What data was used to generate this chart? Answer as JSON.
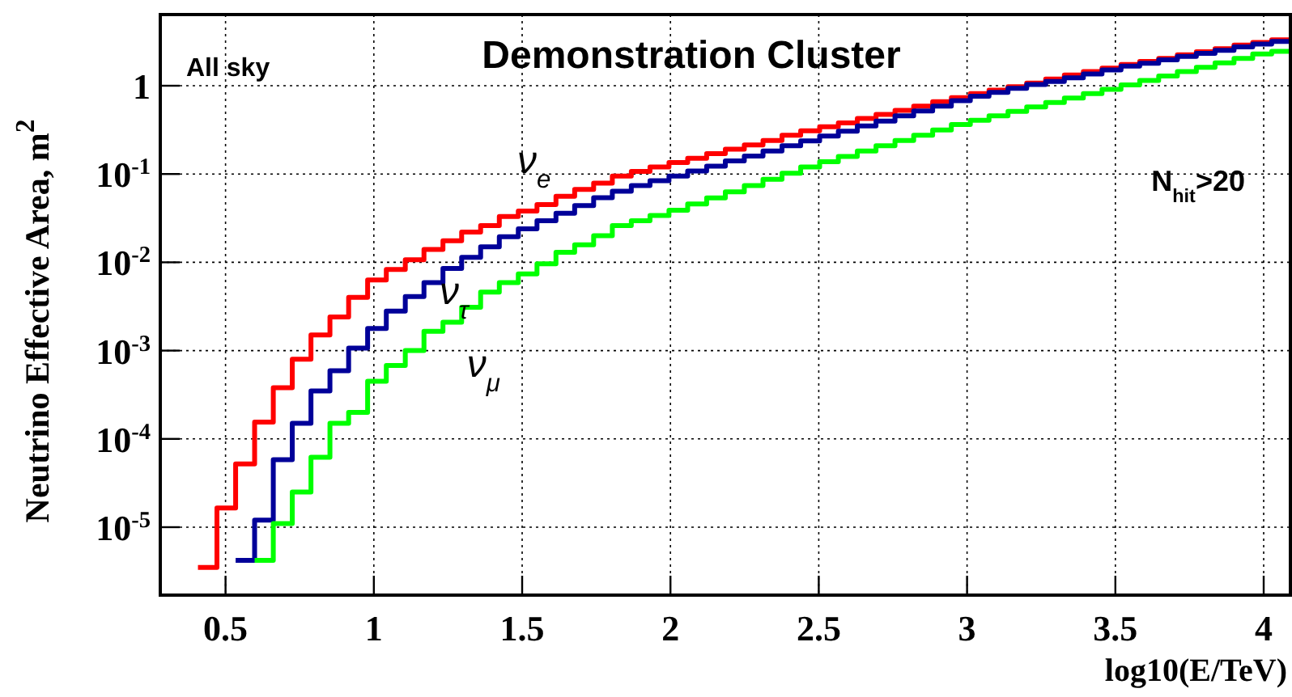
{
  "chart_data": {
    "type": "step",
    "title": "Demonstration Cluster",
    "xlabel": "log10(E/TeV)",
    "ylabel": "Neutrino Effective Area, m$^{2}$",
    "annotations": [
      "All sky",
      "N$_{hit}$>20"
    ],
    "x": [
      0.407,
      0.471,
      0.534,
      0.598,
      0.661,
      0.725,
      0.788,
      0.852,
      0.915,
      0.979,
      1.042,
      1.106,
      1.169,
      1.233,
      1.296,
      1.36,
      1.423,
      1.487,
      1.55,
      1.614,
      1.677,
      1.741,
      1.804,
      1.868,
      1.931,
      1.995,
      2.058,
      2.122,
      2.185,
      2.249,
      2.312,
      2.376,
      2.439,
      2.503,
      2.566,
      2.63,
      2.693,
      2.757,
      2.82,
      2.884,
      2.947,
      3.011,
      3.074,
      3.138,
      3.201,
      3.265,
      3.328,
      3.392,
      3.455,
      3.519,
      3.582,
      3.646,
      3.709,
      3.773,
      3.836,
      3.9,
      3.963,
      4.027,
      4.09
    ],
    "series": [
      {
        "name": "ν$_{e}$",
        "color": "#ff0000",
        "values": [
          3.5e-06,
          1.65e-05,
          5.2e-05,
          0.000155,
          0.00038,
          0.0008,
          0.0015,
          0.0024,
          0.004,
          0.0063,
          0.0083,
          0.0107,
          0.014,
          0.0175,
          0.022,
          0.026,
          0.033,
          0.038,
          0.045,
          0.056,
          0.067,
          0.079,
          0.095,
          0.107,
          0.12,
          0.135,
          0.151,
          0.17,
          0.191,
          0.214,
          0.24,
          0.275,
          0.309,
          0.343,
          0.38,
          0.427,
          0.473,
          0.525,
          0.589,
          0.661,
          0.733,
          0.813,
          0.891,
          0.977,
          1.07,
          1.19,
          1.32,
          1.45,
          1.58,
          1.74,
          1.88,
          2.04,
          2.24,
          2.43,
          2.63,
          2.88,
          3.09,
          3.31,
          3.31
        ]
      },
      {
        "name": "ν$_{τ}$",
        "color": "#000099",
        "values": [
          null,
          null,
          4.2e-06,
          1.2e-05,
          5.8e-05,
          0.00015,
          0.00035,
          0.00059,
          0.00107,
          0.00178,
          0.0028,
          0.0041,
          0.0059,
          0.0085,
          0.0114,
          0.015,
          0.0195,
          0.024,
          0.0295,
          0.036,
          0.044,
          0.054,
          0.064,
          0.074,
          0.084,
          0.095,
          0.108,
          0.123,
          0.141,
          0.16,
          0.182,
          0.209,
          0.237,
          0.269,
          0.305,
          0.351,
          0.398,
          0.457,
          0.519,
          0.589,
          0.676,
          0.759,
          0.841,
          0.933,
          1.03,
          1.12,
          1.23,
          1.36,
          1.51,
          1.67,
          1.8,
          1.96,
          2.15,
          2.33,
          2.52,
          2.76,
          2.96,
          3.17,
          3.17
        ]
      },
      {
        "name": "ν$_{μ}$",
        "color": "#00ff00",
        "values": [
          null,
          null,
          null,
          4.2e-06,
          1.1e-05,
          2.5e-05,
          6.2e-05,
          0.00015,
          0.0002,
          0.00045,
          0.00068,
          0.001,
          0.00165,
          0.0021,
          0.0031,
          0.0046,
          0.0059,
          0.0074,
          0.0096,
          0.013,
          0.0158,
          0.02,
          0.026,
          0.0295,
          0.0339,
          0.0389,
          0.0457,
          0.0537,
          0.063,
          0.074,
          0.087,
          0.102,
          0.12,
          0.138,
          0.158,
          0.182,
          0.209,
          0.24,
          0.275,
          0.316,
          0.363,
          0.407,
          0.457,
          0.513,
          0.575,
          0.646,
          0.724,
          0.813,
          0.912,
          1.02,
          1.15,
          1.29,
          1.45,
          1.62,
          1.82,
          2.04,
          2.29,
          2.45,
          2.45
        ]
      }
    ],
    "xlim": [
      0.28,
      4.09
    ],
    "xticks": [
      0.5,
      1,
      1.5,
      2,
      2.5,
      3,
      3.5,
      4
    ],
    "ylim": [
      1.7e-06,
      6.4
    ],
    "log": true,
    "yticks": [
      {
        "value": 1e-05,
        "label": "10$^{-5}$"
      },
      {
        "value": 0.0001,
        "label": "10$^{-4}$"
      },
      {
        "value": 0.001,
        "label": "10$^{-3}$"
      },
      {
        "value": 0.01,
        "label": "10$^{-2}$"
      },
      {
        "value": 0.1,
        "label": "10$^{-1}$"
      },
      1
    ],
    "grid": true,
    "line_style": "solid"
  }
}
